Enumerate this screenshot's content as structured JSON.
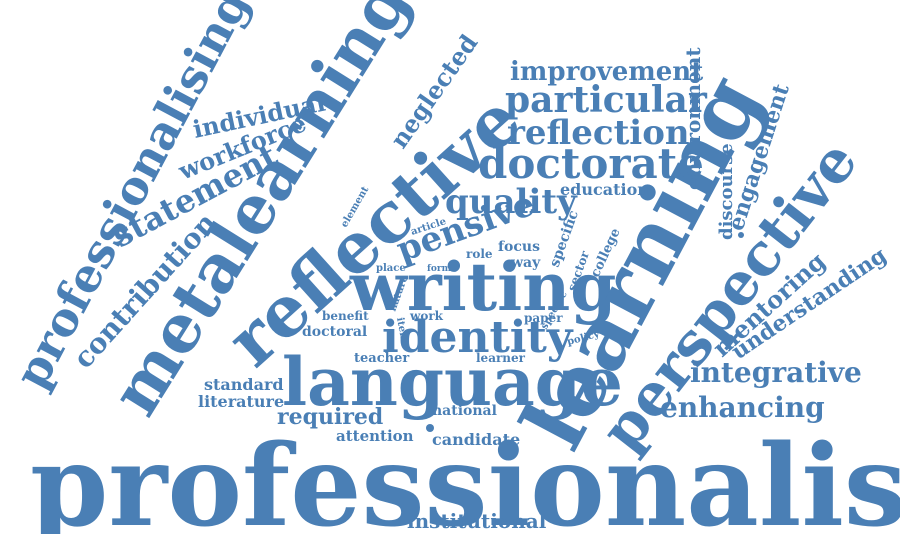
{
  "word_cloud": {
    "color": "#4a7fb5",
    "words": {
      "professionalism": "professionalism",
      "language": "language",
      "writing": "writing",
      "identity": "identity",
      "learning": "learning",
      "reflective": "reflective",
      "metalearning": "metalearning",
      "perspective": "perspective",
      "professionalising": "professionalising",
      "doctorate": "doctorate",
      "particular": "particular",
      "reflection": "reflection",
      "improvement": "improvement",
      "quality": "quality",
      "pensive": "pensive",
      "statement": "statement",
      "contribution": "contribution",
      "individual": "individual",
      "workforce": "workforce",
      "neglected": "neglected",
      "environment": "environment",
      "engagement": "engagement",
      "mentoring": "mentoring",
      "understanding": "understanding",
      "integrative": "integrative",
      "enhancing": "enhancing",
      "education": "education",
      "discourse": "discourse",
      "required": "required",
      "standard": "standard",
      "literature": "literature",
      "attention": "attention",
      "candidate": "candidate",
      "institutional": "institutional",
      "national": "national",
      "teacher": "teacher",
      "learner": "learner",
      "doctoral": "doctoral",
      "benefit": "benefit",
      "work": "work",
      "paper": "paper",
      "policy": "policy",
      "focus": "focus",
      "way": "way",
      "role": "role",
      "form": "form",
      "place": "place",
      "element": "element",
      "article": "article",
      "nature": "nature",
      "item": "item",
      "specific": "specific",
      "sector": "sector",
      "college": "college",
      "specific2": "specific"
    }
  }
}
